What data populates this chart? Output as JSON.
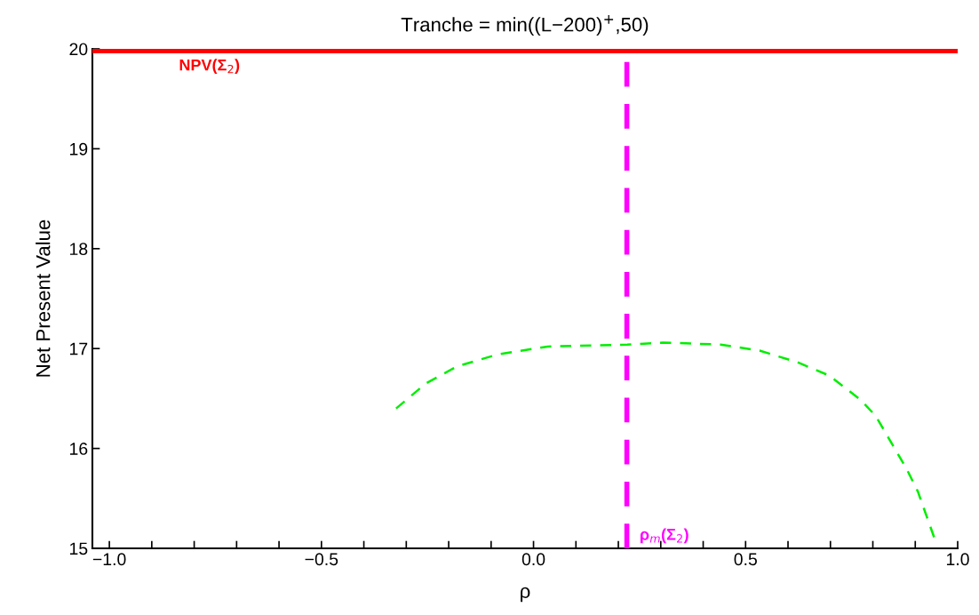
{
  "chart_data": {
    "type": "line",
    "title": "Tranche = min((L−200)$^{+}$,50)",
    "xlabel": "ρ",
    "ylabel": "Net Present Value",
    "xlim": [
      -1.04,
      1.0
    ],
    "ylim": [
      15,
      20
    ],
    "xticks": [
      {
        "value": -1.0,
        "label": "−1.0"
      },
      {
        "value": -0.9,
        "label": null
      },
      {
        "value": -0.8,
        "label": null
      },
      {
        "value": -0.7,
        "label": null
      },
      {
        "value": -0.6,
        "label": null
      },
      {
        "value": -0.5,
        "label": "−0.5"
      },
      {
        "value": -0.4,
        "label": null
      },
      {
        "value": -0.3,
        "label": null
      },
      {
        "value": -0.2,
        "label": null
      },
      {
        "value": -0.1,
        "label": null
      },
      {
        "value": 0.0,
        "label": "0.0"
      },
      {
        "value": 0.1,
        "label": null
      },
      {
        "value": 0.2,
        "label": null
      },
      {
        "value": 0.3,
        "label": null
      },
      {
        "value": 0.4,
        "label": null
      },
      {
        "value": 0.5,
        "label": "0.5"
      },
      {
        "value": 0.6,
        "label": null
      },
      {
        "value": 0.7,
        "label": null
      },
      {
        "value": 0.8,
        "label": null
      },
      {
        "value": 0.9,
        "label": null
      },
      {
        "value": 1.0,
        "label": "1.0"
      }
    ],
    "yticks": [
      15,
      16,
      17,
      18,
      19,
      20
    ],
    "grid": false,
    "legend": false,
    "marker": "none",
    "line_style": "dashed",
    "series": [
      {
        "color": "#00ee00",
        "x": [
          -0.324,
          -0.254,
          -0.181,
          -0.086,
          0.033,
          0.221,
          0.305,
          0.441,
          0.533,
          0.624,
          0.697,
          0.77,
          0.806,
          0.879,
          0.906,
          0.947
        ],
        "values": [
          16.4,
          16.65,
          16.82,
          16.94,
          17.02,
          17.04,
          17.06,
          17.04,
          16.98,
          16.86,
          16.73,
          16.49,
          16.33,
          15.8,
          15.57,
          15.08
        ]
      }
    ],
    "ref_lines": [
      {
        "axis": "y",
        "value": 19.98,
        "label": "NPV(Σ$_{2}$)",
        "color": "#ff0000",
        "line_style": "solid"
      },
      {
        "axis": "x",
        "value": 0.22,
        "label": "ρ$_{m}$(Σ$_{2}$)",
        "color": "#ff00ff",
        "line_style": "dashed"
      }
    ]
  }
}
